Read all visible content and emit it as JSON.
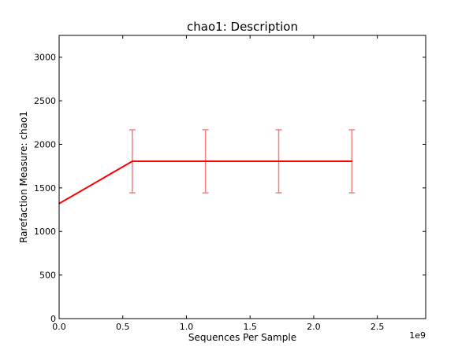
{
  "chart_data": {
    "type": "line",
    "title": "chao1: Description",
    "xlabel": "Sequences Per Sample",
    "ylabel": "Rarefaction Measure: chao1",
    "x_offset_label": "1e9",
    "xlim": [
      0,
      2.88
    ],
    "ylim": [
      0,
      3250
    ],
    "x_ticks": [
      0.0,
      0.5,
      1.0,
      1.5,
      2.0,
      2.5
    ],
    "x_tick_labels": [
      "0.0",
      "0.5",
      "1.0",
      "1.5",
      "2.0",
      "2.5"
    ],
    "y_ticks": [
      0,
      500,
      1000,
      1500,
      2000,
      2500,
      3000
    ],
    "y_tick_labels": [
      "0",
      "500",
      "1000",
      "1500",
      "2000",
      "2500",
      "3000"
    ],
    "grid": false,
    "series": [
      {
        "color": "#ff0000",
        "errorbar_color": "#f08080",
        "points": [
          {
            "x": 0.0,
            "y": 1320,
            "err": null
          },
          {
            "x": 0.575,
            "y": 1805,
            "err": 362
          },
          {
            "x": 1.15,
            "y": 1805,
            "err": 362
          },
          {
            "x": 1.725,
            "y": 1805,
            "err": 362
          },
          {
            "x": 2.3,
            "y": 1805,
            "err": 362
          }
        ]
      }
    ]
  }
}
